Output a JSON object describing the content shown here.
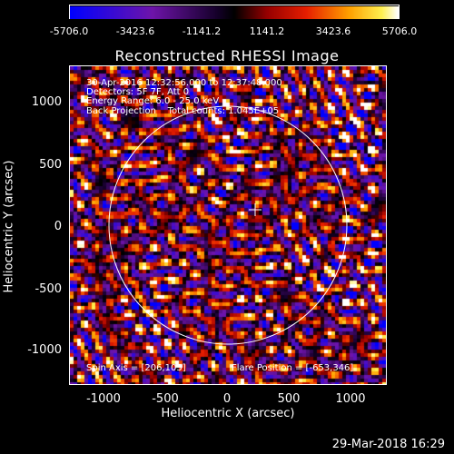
{
  "colorbar": {
    "ticks": [
      "-5706.0",
      "-3423.6",
      "-1141.2",
      "1141.2",
      "3423.6",
      "5706.0"
    ]
  },
  "title": "Reconstructed RHESSI Image",
  "annotations": {
    "line1": "30-Apr-2016 12:32:56.000 to 12:37:48.000",
    "line2": "Detectors: 5F 7F, Att 0",
    "line3": "Energy Range: 6.0 - 25.0 keV",
    "line4": "Back Projection    Total counts: 1.045E+05",
    "spin_axis": "Spin Axis = [206,105]",
    "flare_position": "Flare Position = [-653,346]"
  },
  "axes": {
    "x_label": "Heliocentric X (arcsec)",
    "y_label": "Heliocentric Y (arcsec)",
    "x_ticks": [
      "-1000",
      "-500",
      "0",
      "500",
      "1000"
    ],
    "y_ticks": [
      "1000",
      "500",
      "0",
      "-500",
      "-1000"
    ],
    "x_range": [
      -1280,
      1280
    ],
    "y_range": [
      -1280,
      1280
    ]
  },
  "footer_date": "29-Mar-2018 16:29"
}
